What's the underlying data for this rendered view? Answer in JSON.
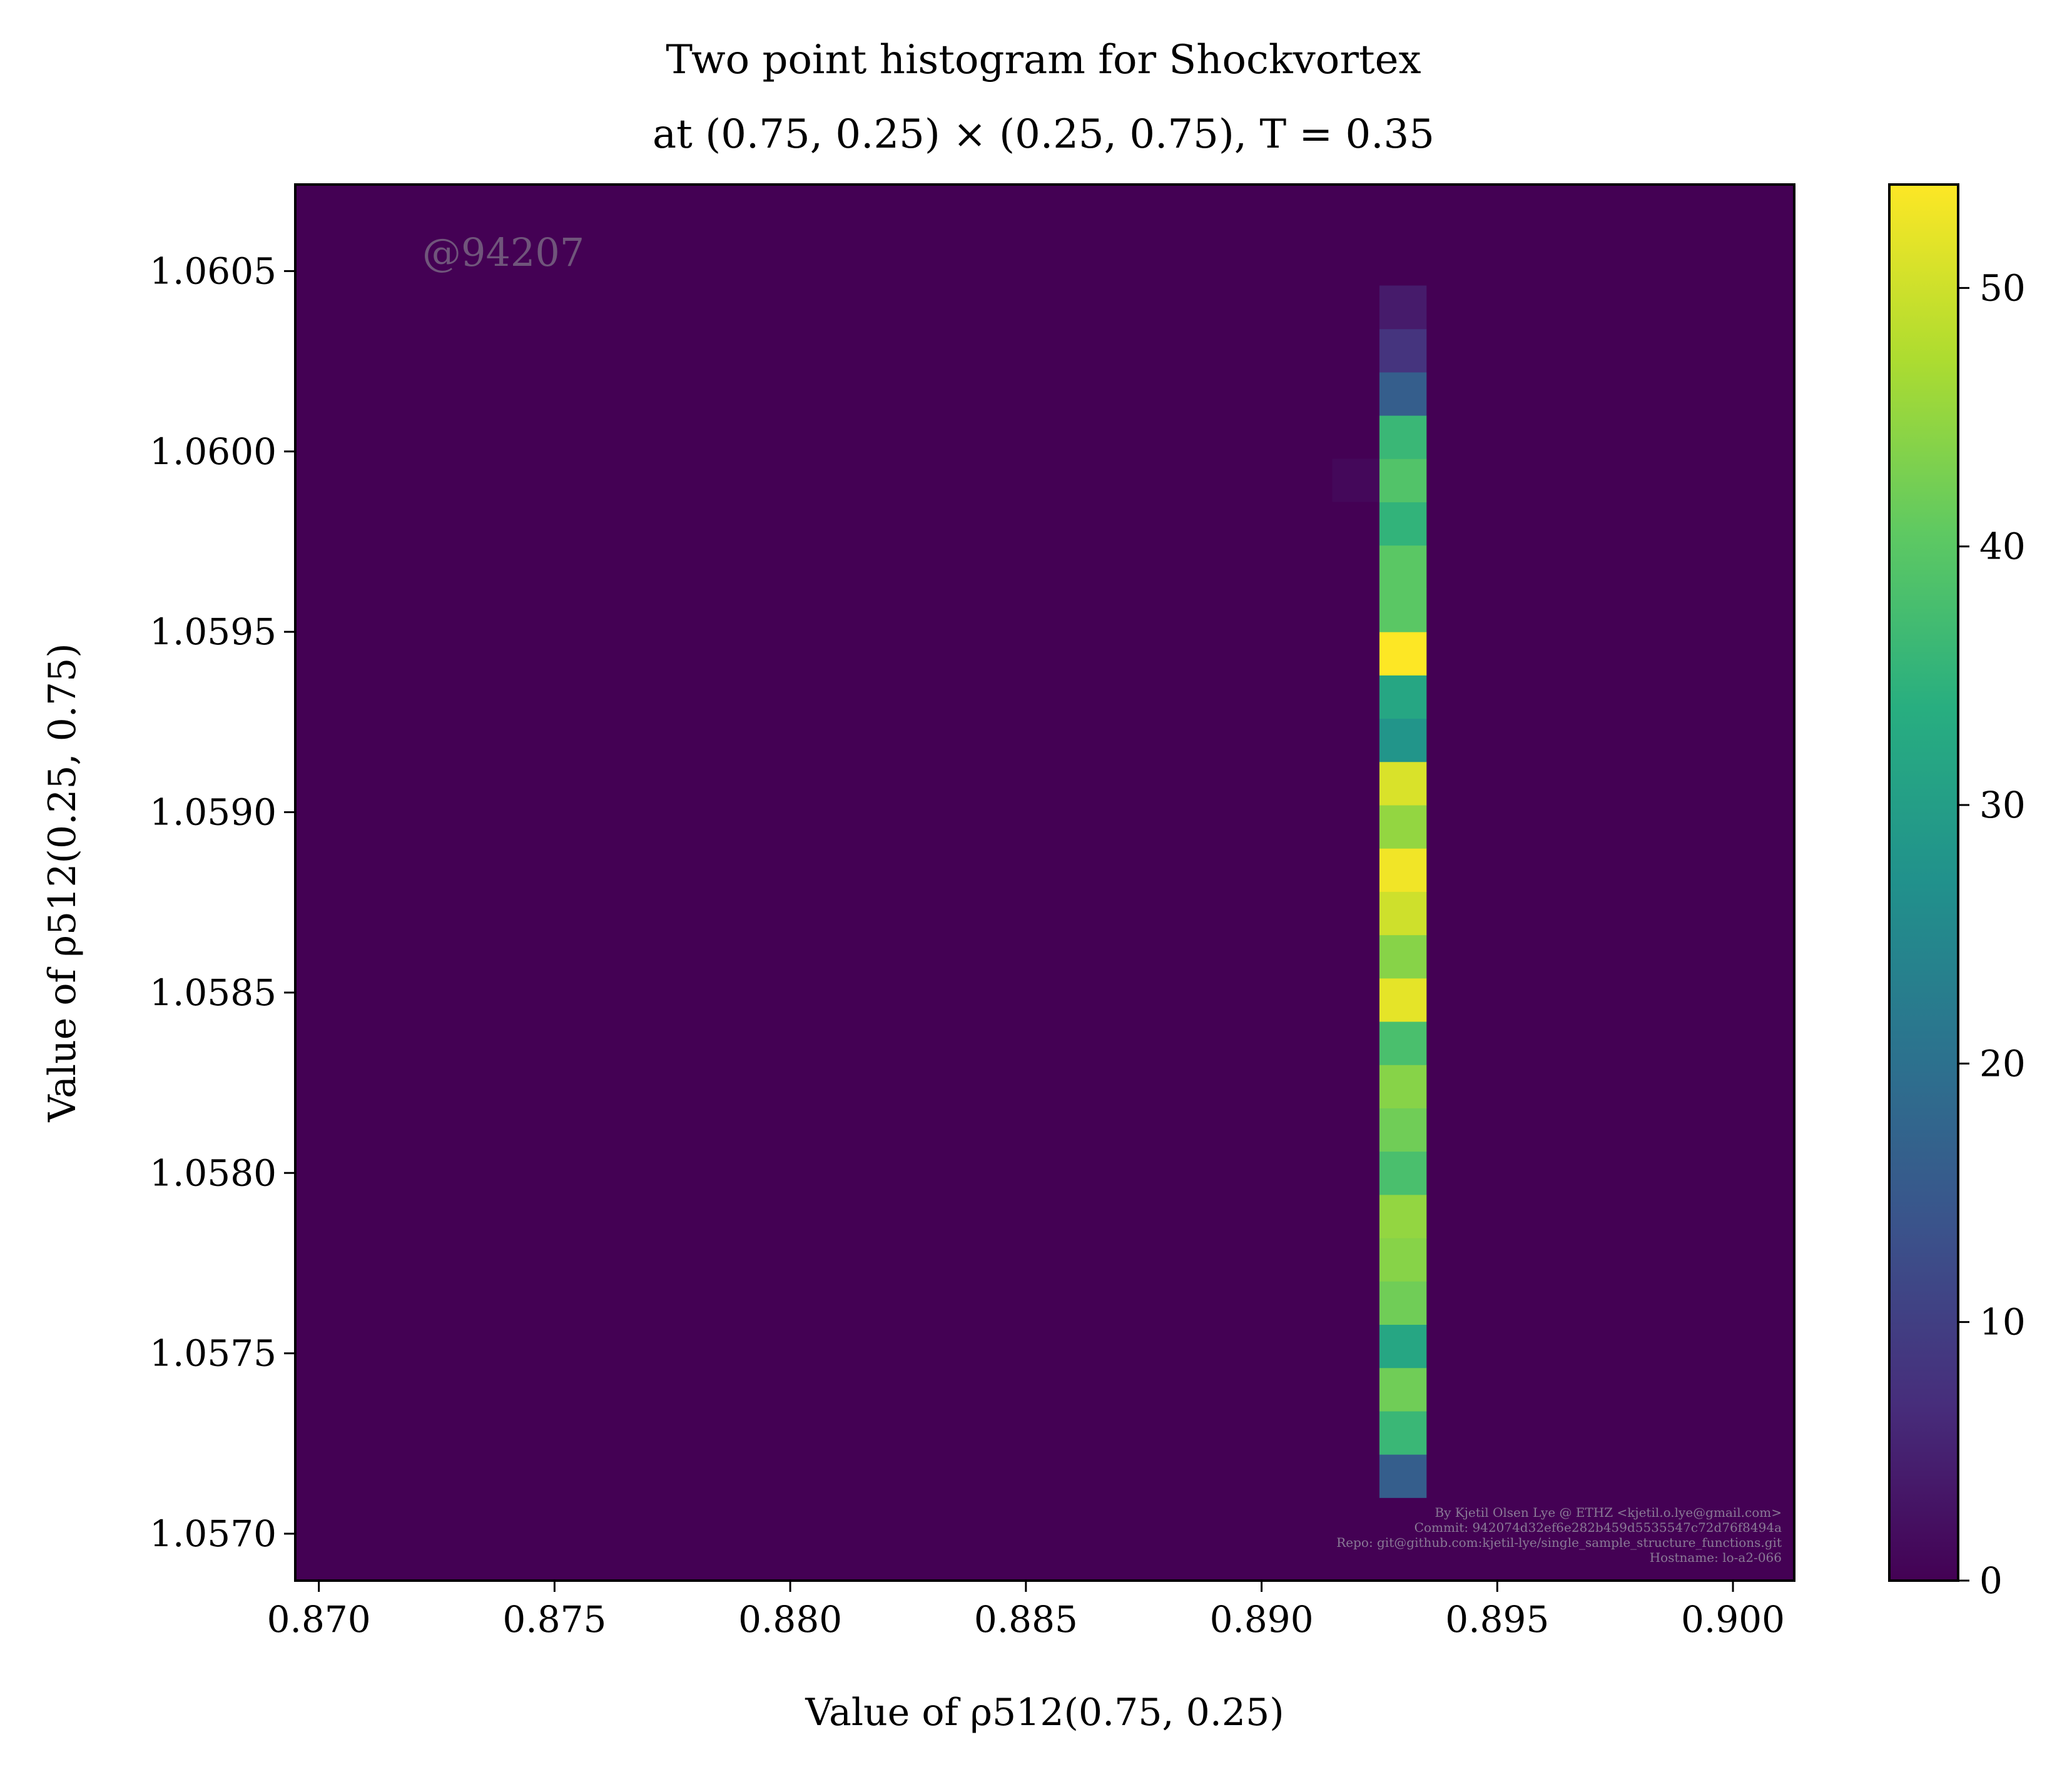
{
  "chart_data": {
    "type": "heatmap",
    "title_line1": "Two point histogram for Shockvortex",
    "title_line2": "at (0.75, 0.25) × (0.25, 0.75), T = 0.35",
    "xlabel": "Value of ρ512(0.75, 0.25)",
    "ylabel": "Value of ρ512(0.25, 0.75)",
    "xlim": [
      0.8695,
      0.9013
    ],
    "ylim": [
      1.05687,
      1.06074
    ],
    "x_ticks": [
      0.87,
      0.875,
      0.88,
      0.885,
      0.89,
      0.895,
      0.9
    ],
    "x_tick_labels": [
      "0.870",
      "0.875",
      "0.880",
      "0.885",
      "0.890",
      "0.895",
      "0.900"
    ],
    "y_ticks": [
      1.057,
      1.0575,
      1.058,
      1.0585,
      1.059,
      1.0595,
      1.06,
      1.0605
    ],
    "y_tick_labels": [
      "1.0570",
      "1.0575",
      "1.0580",
      "1.0585",
      "1.0590",
      "1.0595",
      "1.0600",
      "1.0605"
    ],
    "colormap": "viridis",
    "colorbar_range": [
      0,
      54
    ],
    "colorbar_ticks": [
      0,
      10,
      20,
      30,
      40,
      50
    ],
    "colorbar_tick_labels": [
      "0",
      "10",
      "20",
      "30",
      "40",
      "50"
    ],
    "column": {
      "x_range": [
        0.8925,
        0.8935
      ],
      "y_bins_bottom_to_top": [
        [
          1.0571,
          1.05722,
          16
        ],
        [
          1.05722,
          1.05734,
          36
        ],
        [
          1.05734,
          1.05746,
          42
        ],
        [
          1.05746,
          1.05758,
          32
        ],
        [
          1.05758,
          1.0577,
          42
        ],
        [
          1.0577,
          1.05782,
          44
        ],
        [
          1.05782,
          1.05794,
          45
        ],
        [
          1.05794,
          1.05806,
          38
        ],
        [
          1.05806,
          1.05818,
          42
        ],
        [
          1.05818,
          1.0583,
          44
        ],
        [
          1.0583,
          1.05842,
          38
        ],
        [
          1.05842,
          1.05854,
          52
        ],
        [
          1.05854,
          1.05866,
          44
        ],
        [
          1.05866,
          1.05878,
          50
        ],
        [
          1.05878,
          1.0589,
          53
        ],
        [
          1.0589,
          1.05902,
          45
        ],
        [
          1.05902,
          1.05914,
          51
        ],
        [
          1.05914,
          1.05926,
          28
        ],
        [
          1.05926,
          1.05938,
          32
        ],
        [
          1.05938,
          1.0595,
          54
        ],
        [
          1.0595,
          1.05962,
          40
        ],
        [
          1.05962,
          1.05974,
          40
        ],
        [
          1.05974,
          1.05986,
          35
        ],
        [
          1.05986,
          1.05998,
          39
        ],
        [
          1.05998,
          1.0601,
          36
        ],
        [
          1.0601,
          1.06022,
          16
        ],
        [
          1.06022,
          1.06034,
          8
        ],
        [
          1.06034,
          1.06046,
          4
        ]
      ]
    },
    "faint_cell": {
      "x": [
        0.8915,
        0.8925
      ],
      "y": [
        1.05986,
        1.05998
      ],
      "value": 1
    },
    "annotation_watermark": "@94207",
    "annotation_footer": [
      "By Kjetil Olsen Lye @ ETHZ <kjetil.o.lye@gmail.com>",
      "Commit: 942074d32ef6e282b459d5535547c72d76f8494a",
      "Repo: git@github.com:kjetil-lye/single_sample_structure_functions.git",
      "Hostname: lo-a2-066"
    ]
  }
}
